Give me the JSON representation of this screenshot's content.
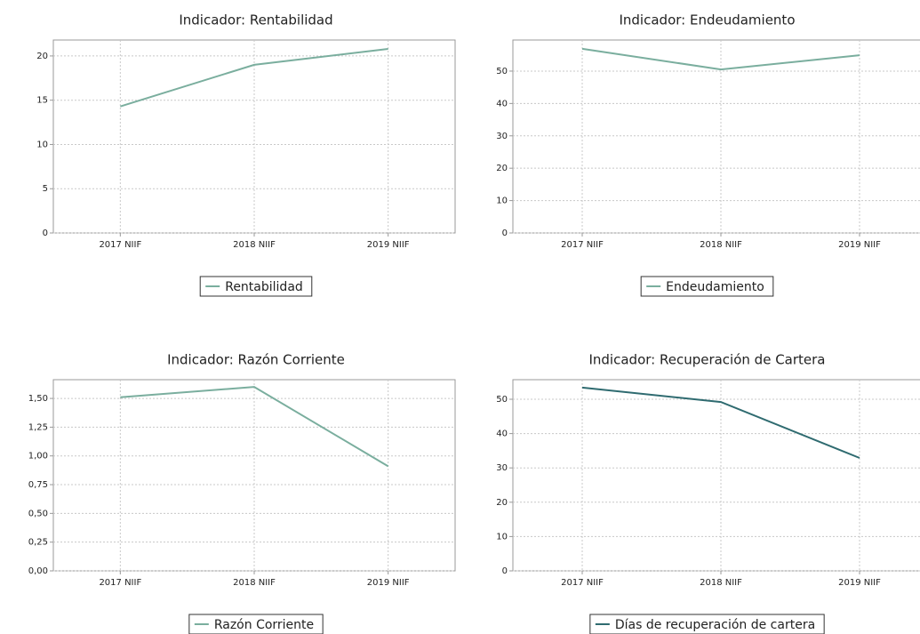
{
  "chart_data": [
    {
      "type": "line",
      "title": "Indicador: Rentabilidad",
      "categories": [
        "2017 NIIF",
        "2018 NIIF",
        "2019 NIIF"
      ],
      "series": [
        {
          "name": "Rentabilidad",
          "color": "#7aae9e",
          "values": [
            14.3,
            19.0,
            20.8
          ]
        }
      ],
      "ylim": [
        0,
        21.8
      ],
      "yticks": [
        0,
        5,
        10,
        15,
        20
      ],
      "grid": true
    },
    {
      "type": "line",
      "title": "Indicador: Endeudamiento",
      "categories": [
        "2017 NIIF",
        "2018 NIIF",
        "2019 NIIF"
      ],
      "series": [
        {
          "name": "Endeudamiento",
          "color": "#7aae9e",
          "values": [
            56.9,
            50.5,
            54.9
          ]
        }
      ],
      "ylim": [
        0,
        59.6
      ],
      "yticks": [
        0,
        10,
        20,
        30,
        40,
        50
      ],
      "grid": true
    },
    {
      "type": "line",
      "title": "Indicador: Razón Corriente",
      "categories": [
        "2017 NIIF",
        "2018 NIIF",
        "2019 NIIF"
      ],
      "series": [
        {
          "name": "Razón Corriente",
          "color": "#7aae9e",
          "values": [
            1.51,
            1.6,
            0.91
          ]
        }
      ],
      "ylim": [
        0,
        1.663
      ],
      "yticks": [
        {
          "value": 0,
          "label": "0,00"
        },
        {
          "value": 0.25,
          "label": "0,25"
        },
        {
          "value": 0.5,
          "label": "0,50"
        },
        {
          "value": 0.75,
          "label": "0,75"
        },
        {
          "value": 1,
          "label": "1,00"
        },
        {
          "value": 1.25,
          "label": "1,25"
        },
        {
          "value": 1.5,
          "label": "1,50"
        }
      ],
      "grid": true
    },
    {
      "type": "line",
      "title": "Indicador: Recuperación de Cartera",
      "categories": [
        "2017 NIIF",
        "2018 NIIF",
        "2019 NIIF"
      ],
      "series": [
        {
          "name": "Días de recuperación de cartera",
          "color": "#2f6b70",
          "values": [
            53.4,
            49.2,
            32.9
          ]
        }
      ],
      "ylim": [
        0,
        55.7
      ],
      "yticks": [
        0,
        10,
        20,
        30,
        40,
        50
      ],
      "grid": true
    }
  ]
}
